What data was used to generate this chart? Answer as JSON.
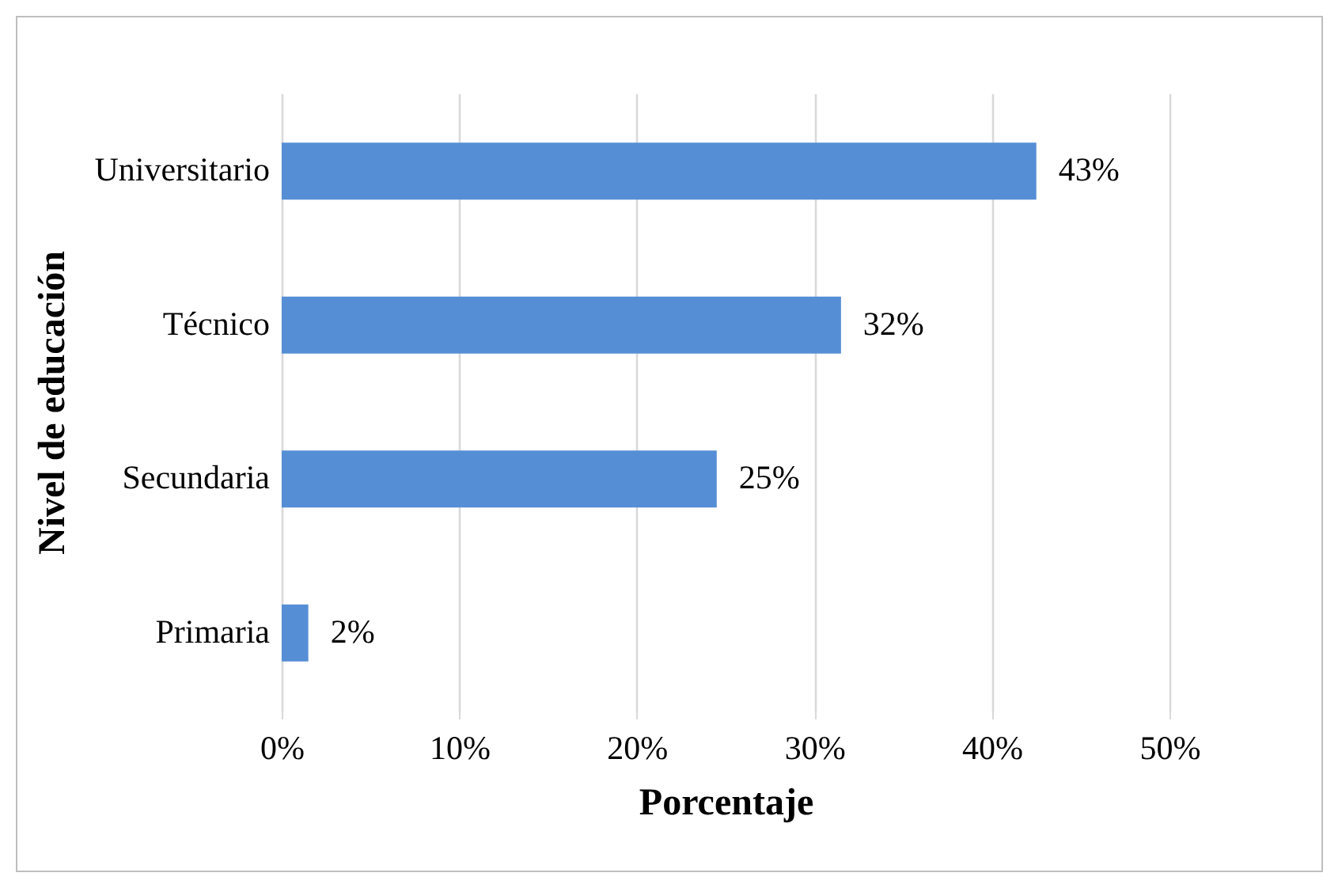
{
  "chart_data": {
    "type": "bar",
    "orientation": "horizontal",
    "xlabel": "Porcentaje",
    "ylabel": "Nivel de educación",
    "categories": [
      "Universitario",
      "Técnico",
      "Secundaria",
      "Primaria"
    ],
    "values": [
      42.5,
      31.5,
      24.5,
      1.5
    ],
    "value_labels": [
      "43%",
      "32%",
      "25%",
      "2%"
    ],
    "color": "#558ed5",
    "xlim": [
      0,
      50
    ],
    "xticks": [
      {
        "value": 0,
        "label": "0%"
      },
      {
        "value": 10,
        "label": "10%"
      },
      {
        "value": 20,
        "label": "20%"
      },
      {
        "value": 30,
        "label": "30%"
      },
      {
        "value": 40,
        "label": "40%"
      },
      {
        "value": 50,
        "label": "50%"
      }
    ],
    "grid": "x"
  }
}
